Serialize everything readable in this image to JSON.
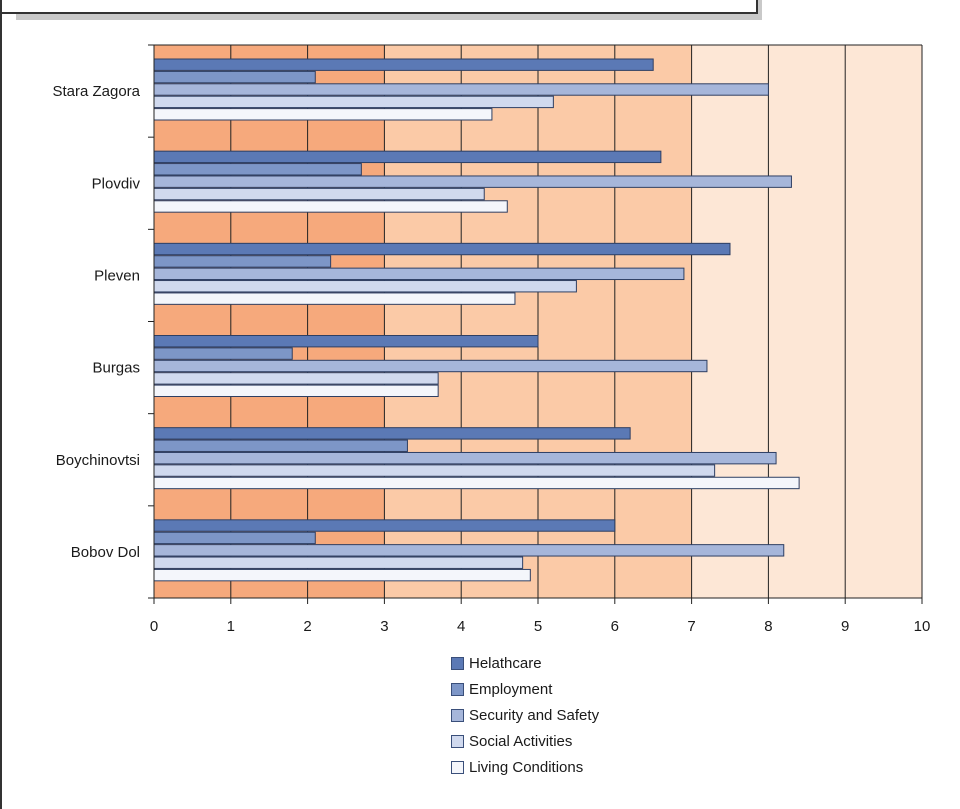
{
  "chart_data": {
    "type": "bar",
    "orientation": "horizontal",
    "categories": [
      "Stara Zagora",
      "Plovdiv",
      "Pleven",
      "Burgas",
      "Boychinovtsi",
      "Bobov Dol"
    ],
    "series": [
      {
        "name": "Helathcare",
        "color": "#5b79b5",
        "values": [
          6.5,
          6.6,
          7.5,
          5.0,
          6.2,
          6.0
        ]
      },
      {
        "name": "Employment",
        "color": "#7d96c7",
        "values": [
          2.1,
          2.7,
          2.3,
          1.8,
          3.3,
          2.1
        ]
      },
      {
        "name": "Security and Safety",
        "color": "#a6b6da",
        "values": [
          8.0,
          8.3,
          6.9,
          7.2,
          8.1,
          8.2
        ]
      },
      {
        "name": "Social Activities",
        "color": "#d0d9ee",
        "values": [
          5.2,
          4.3,
          5.5,
          3.7,
          7.3,
          4.8
        ]
      },
      {
        "name": "Living Conditions",
        "color": "#f4f6fb",
        "values": [
          4.4,
          4.6,
          4.7,
          3.7,
          8.4,
          4.9
        ]
      }
    ],
    "xlim": [
      0,
      10
    ],
    "xticks": [
      "0",
      "1",
      "2",
      "3",
      "4",
      "5",
      "6",
      "7",
      "8",
      "9",
      "10"
    ],
    "background_bands": [
      {
        "from": 0,
        "to": 3,
        "color": "#f6a97c"
      },
      {
        "from": 3,
        "to": 7,
        "color": "#fbcaa7"
      },
      {
        "from": 7,
        "to": 10,
        "color": "#fde7d6"
      }
    ],
    "grid": true,
    "legend_position": "bottom"
  }
}
